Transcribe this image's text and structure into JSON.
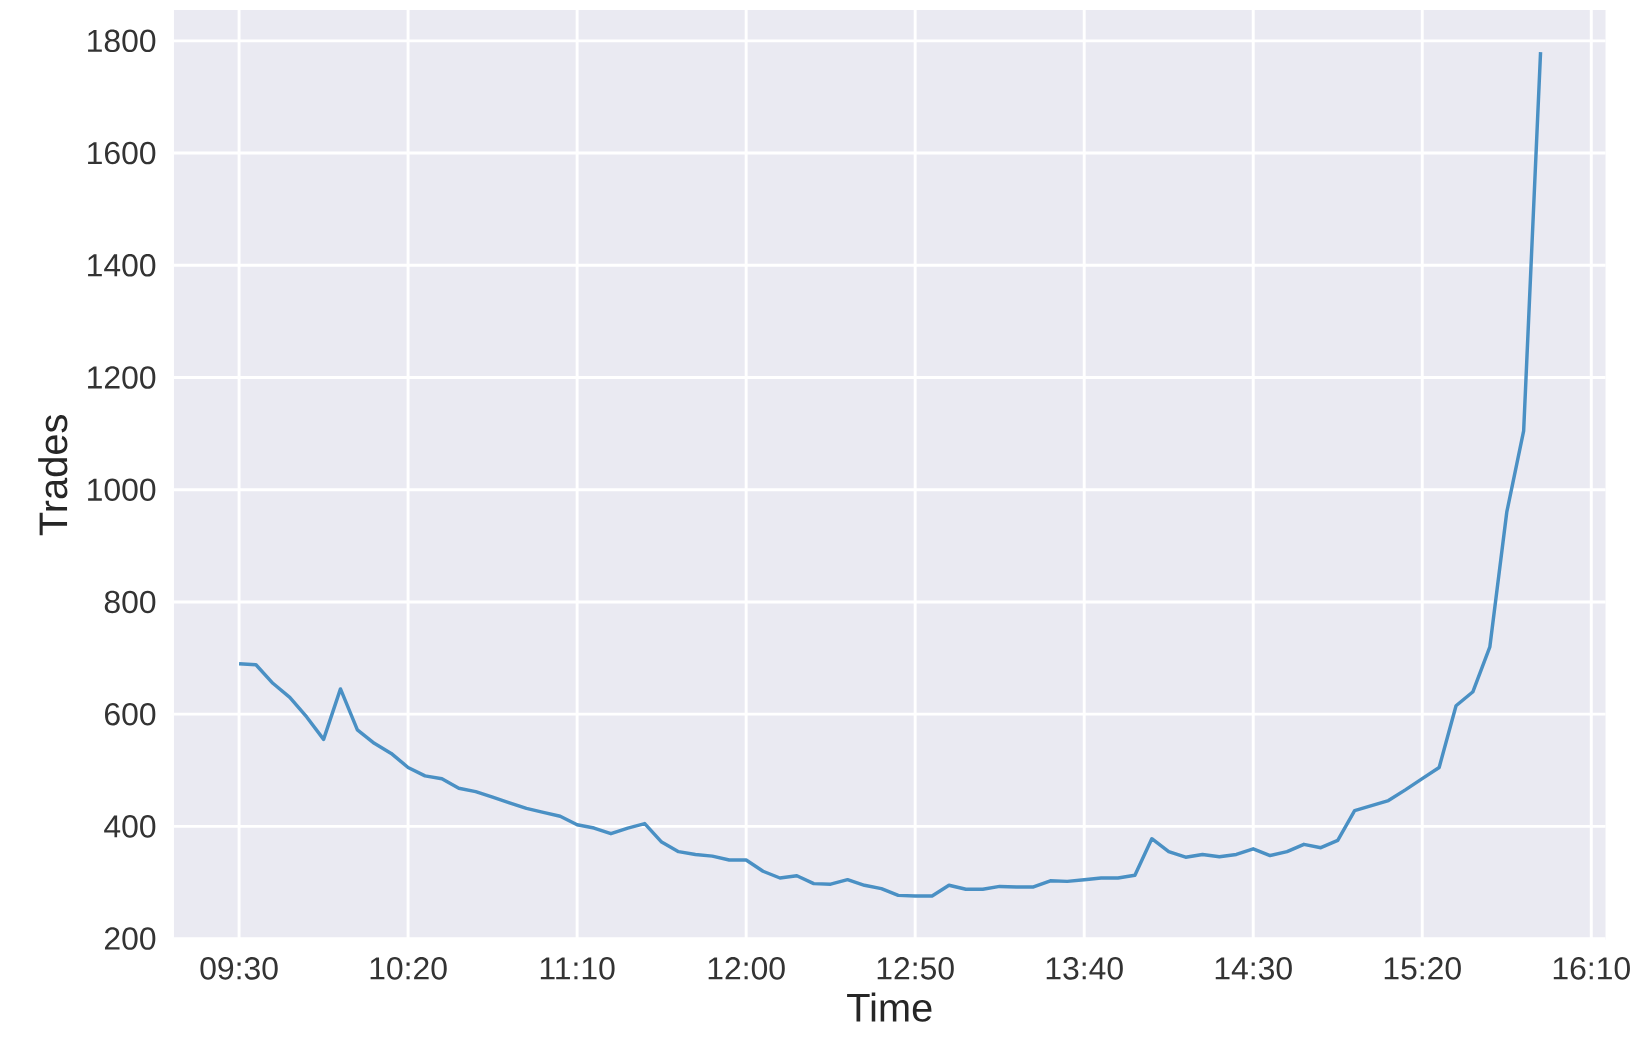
{
  "chart_data": {
    "type": "line",
    "xlabel": "Time",
    "ylabel": "Trades",
    "color": "#4a90c4",
    "grid": true,
    "x": [
      9.5,
      9.5833,
      9.6667,
      9.75,
      9.8333,
      9.9167,
      10,
      10.0833,
      10.1667,
      10.25,
      10.3333,
      10.4167,
      10.5,
      10.5833,
      10.6667,
      10.75,
      10.8333,
      10.9167,
      11,
      11.0833,
      11.1667,
      11.25,
      11.3333,
      11.4167,
      11.5,
      11.5833,
      11.6667,
      11.75,
      11.8333,
      11.9167,
      12,
      12.0833,
      12.1667,
      12.25,
      12.3333,
      12.4167,
      12.5,
      12.5833,
      12.6667,
      12.75,
      12.8333,
      12.9167,
      13,
      13.0833,
      13.1667,
      13.25,
      13.3333,
      13.4167,
      13.5,
      13.5833,
      13.6667,
      13.75,
      13.8333,
      13.9167,
      14,
      14.0833,
      14.1667,
      14.25,
      14.3333,
      14.4167,
      14.5,
      14.5833,
      14.6667,
      14.75,
      14.8333,
      14.9167,
      15,
      15.0833,
      15.1667,
      15.25,
      15.3333,
      15.4167,
      15.5,
      15.5833,
      15.6667,
      15.75,
      15.8333,
      15.9167
    ],
    "values": [
      690,
      688,
      655,
      630,
      595,
      555,
      645,
      572,
      548,
      530,
      505,
      490,
      485,
      468,
      462,
      452,
      442,
      432,
      425,
      418,
      403,
      397,
      387,
      397,
      405,
      372,
      355,
      350,
      347,
      340,
      340,
      320,
      308,
      312,
      298,
      297,
      305,
      295,
      289,
      277,
      276,
      276,
      295,
      288,
      288,
      293,
      292,
      292,
      303,
      302,
      305,
      308,
      308,
      313,
      378,
      355,
      345,
      350,
      346,
      350,
      360,
      348,
      355,
      368,
      362,
      375,
      428,
      437,
      446,
      465,
      485,
      505,
      615,
      640,
      720,
      960,
      1105,
      1780
    ],
    "xlim": [
      9.179,
      16.237
    ],
    "ylim": [
      198,
      1855
    ],
    "xticks": [
      {
        "value": 9.5,
        "label": "09:30"
      },
      {
        "value": 10.3333,
        "label": "10:20"
      },
      {
        "value": 11.1667,
        "label": "11:10"
      },
      {
        "value": 12,
        "label": "12:00"
      },
      {
        "value": 12.8333,
        "label": "12:50"
      },
      {
        "value": 13.6667,
        "label": "13:40"
      },
      {
        "value": 14.5,
        "label": "14:30"
      },
      {
        "value": 15.3333,
        "label": "15:20"
      },
      {
        "value": 16.1667,
        "label": "16:10"
      }
    ],
    "yticks": [
      200,
      400,
      600,
      800,
      1000,
      1200,
      1400,
      1600,
      1800
    ]
  }
}
